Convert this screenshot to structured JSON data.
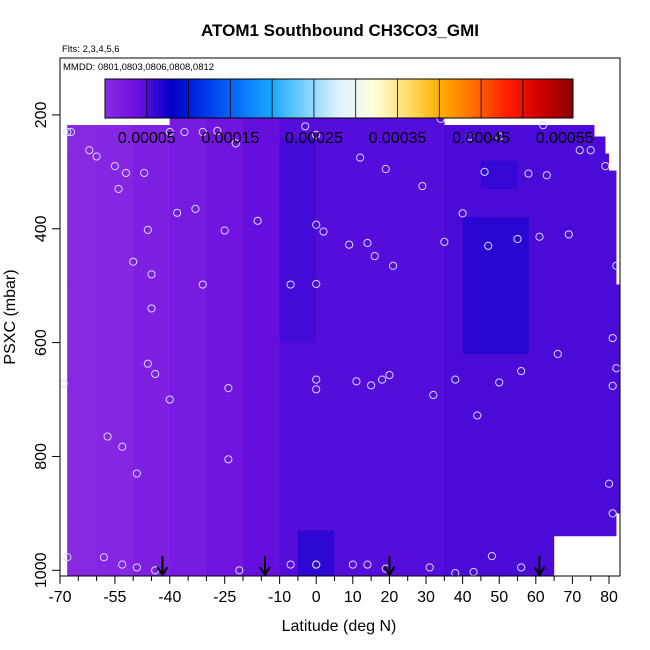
{
  "chart_data": {
    "type": "heatmap",
    "title": "ATOM1 Southbound CH3CO3_GMI",
    "subtitle_flights": "Flts: 2,3,4,5,6",
    "subtitle_dates": "MMDD: 0801,0803,0806,0808,0812",
    "xlabel": "Latitude (deg N)",
    "ylabel": "PSXC (mbar)",
    "xlim": [
      -70,
      83
    ],
    "ylim": [
      1010,
      100
    ],
    "x_ticks": [
      {
        "value": -70,
        "label": "-70"
      },
      {
        "value": -55,
        "label": "-55"
      },
      {
        "value": -40,
        "label": "-40"
      },
      {
        "value": -25,
        "label": "-25"
      },
      {
        "value": -10,
        "label": "-10"
      },
      {
        "value": 0,
        "label": "0"
      },
      {
        "value": 10,
        "label": "10"
      },
      {
        "value": 20,
        "label": "20"
      },
      {
        "value": 30,
        "label": "30"
      },
      {
        "value": 40,
        "label": "40"
      },
      {
        "value": 50,
        "label": "50"
      },
      {
        "value": 60,
        "label": "60"
      },
      {
        "value": 70,
        "label": "70"
      },
      {
        "value": 80,
        "label": "80"
      }
    ],
    "x_minor_ticks": [
      -65,
      -60,
      -50,
      -45,
      -35,
      -30,
      -20,
      -15,
      -5,
      5,
      15,
      25,
      35,
      45,
      55,
      65,
      75
    ],
    "y_ticks": [
      {
        "value": 200,
        "label": "200"
      },
      {
        "value": 400,
        "label": "400"
      },
      {
        "value": 600,
        "label": "600"
      },
      {
        "value": 800,
        "label": "800"
      },
      {
        "value": 1000,
        "label": "1000"
      }
    ],
    "colorbar": {
      "range": [
        0.0,
        0.00056
      ],
      "colors": [
        "#8a2be2",
        "#6a10e0",
        "#0000c8",
        "#0038e8",
        "#0a70ff",
        "#1aa8ff",
        "#7cd2ff",
        "#e0f2ff",
        "#ffffe0",
        "#ffe070",
        "#ffb000",
        "#ff7000",
        "#ff2000",
        "#d00000",
        "#8b0000"
      ],
      "tick_labels": [
        {
          "value": 5e-05,
          "label": "0.00005"
        },
        {
          "value": 0.00015,
          "label": "0.00015"
        },
        {
          "value": 0.00025,
          "label": "0.00025"
        },
        {
          "value": 0.00035,
          "label": "0.00035"
        },
        {
          "value": 0.00045,
          "label": "0.00045"
        },
        {
          "value": 0.00055,
          "label": "0.00055"
        }
      ]
    },
    "coverage": [
      {
        "lat_min": -40,
        "lat_max": 35,
        "p_min": 170,
        "p_max": 220
      },
      {
        "lat_min": -68,
        "lat_max": 76,
        "p_min": 218,
        "p_max": 240
      },
      {
        "lat_min": -68,
        "lat_max": 79,
        "p_min": 238,
        "p_max": 270
      },
      {
        "lat_min": -68,
        "lat_max": 80,
        "p_min": 268,
        "p_max": 300
      },
      {
        "lat_min": -68,
        "lat_max": 82,
        "p_min": 298,
        "p_max": 500
      },
      {
        "lat_min": -68,
        "lat_max": 83,
        "p_min": 498,
        "p_max": 900
      },
      {
        "lat_min": -68,
        "lat_max": 82,
        "p_min": 898,
        "p_max": 940
      },
      {
        "lat_min": -68,
        "lat_max": 65,
        "p_min": 938,
        "p_max": 1010
      }
    ],
    "field": [
      {
        "lat_min": -70,
        "lat_max": -60,
        "value": 3e-06
      },
      {
        "lat_min": -60,
        "lat_max": -50,
        "value": 8e-06
      },
      {
        "lat_min": -50,
        "lat_max": -40,
        "value": 1.6e-05
      },
      {
        "lat_min": -40,
        "lat_max": -30,
        "value": 2.4e-05
      },
      {
        "lat_min": -30,
        "lat_max": -20,
        "value": 3.2e-05
      },
      {
        "lat_min": -20,
        "lat_max": -10,
        "value": 4.2e-05
      },
      {
        "lat_min": -10,
        "lat_max": 35,
        "value": 4.8e-05
      },
      {
        "lat_min": 35,
        "lat_max": 85,
        "value": 5.2e-05
      }
    ],
    "field_highlights": [
      {
        "lat_min": 40,
        "lat_max": 58,
        "p_min": 380,
        "p_max": 620,
        "value": 6.8e-05
      },
      {
        "lat_min": 45,
        "lat_max": 55,
        "p_min": 280,
        "p_max": 330,
        "value": 6.2e-05
      },
      {
        "lat_min": -5,
        "lat_max": 5,
        "p_min": 930,
        "p_max": 1010,
        "value": 6.6e-05
      },
      {
        "lat_min": -10,
        "lat_max": 0,
        "p_min": 240,
        "p_max": 600,
        "value": 5.6e-05
      }
    ],
    "observations": [
      {
        "lat": -67,
        "p": 230
      },
      {
        "lat": -68,
        "p": 230
      },
      {
        "lat": -62,
        "p": 262
      },
      {
        "lat": -60,
        "p": 273
      },
      {
        "lat": -55,
        "p": 290
      },
      {
        "lat": -52,
        "p": 302
      },
      {
        "lat": -47,
        "p": 302
      },
      {
        "lat": -54,
        "p": 330
      },
      {
        "lat": -40,
        "p": 230
      },
      {
        "lat": -36,
        "p": 230
      },
      {
        "lat": -31,
        "p": 230
      },
      {
        "lat": -27,
        "p": 228
      },
      {
        "lat": -44,
        "p": 200
      },
      {
        "lat": -22,
        "p": 250
      },
      {
        "lat": -38,
        "p": 372
      },
      {
        "lat": -33,
        "p": 365
      },
      {
        "lat": -46,
        "p": 402
      },
      {
        "lat": -25,
        "p": 403
      },
      {
        "lat": -16,
        "p": 386
      },
      {
        "lat": -50,
        "p": 458
      },
      {
        "lat": -45,
        "p": 480
      },
      {
        "lat": -45,
        "p": 540
      },
      {
        "lat": -31,
        "p": 498
      },
      {
        "lat": -69,
        "p": 672
      },
      {
        "lat": -46,
        "p": 637
      },
      {
        "lat": -44,
        "p": 655
      },
      {
        "lat": -40,
        "p": 700
      },
      {
        "lat": -24,
        "p": 680
      },
      {
        "lat": -57,
        "p": 765
      },
      {
        "lat": -53,
        "p": 783
      },
      {
        "lat": -49,
        "p": 830
      },
      {
        "lat": -24,
        "p": 805
      },
      {
        "lat": -68,
        "p": 977
      },
      {
        "lat": -58,
        "p": 977
      },
      {
        "lat": -53,
        "p": 990
      },
      {
        "lat": -49,
        "p": 995
      },
      {
        "lat": -44,
        "p": 1000
      },
      {
        "lat": -21,
        "p": 1000
      },
      {
        "lat": -7,
        "p": 990
      },
      {
        "lat": 0,
        "p": 990
      },
      {
        "lat": 0,
        "p": 990
      },
      {
        "lat": 10,
        "p": 990
      },
      {
        "lat": 14,
        "p": 990
      },
      {
        "lat": 19,
        "p": 997
      },
      {
        "lat": 31,
        "p": 995
      },
      {
        "lat": 38,
        "p": 1005
      },
      {
        "lat": 43,
        "p": 1003
      },
      {
        "lat": 48,
        "p": 975
      },
      {
        "lat": 56,
        "p": 995
      },
      {
        "lat": -3,
        "p": 220
      },
      {
        "lat": 0,
        "p": 235
      },
      {
        "lat": 12,
        "p": 275
      },
      {
        "lat": 19,
        "p": 295
      },
      {
        "lat": 26,
        "p": 183
      },
      {
        "lat": 34,
        "p": 207
      },
      {
        "lat": 42,
        "p": 238
      },
      {
        "lat": 50,
        "p": 238
      },
      {
        "lat": 62,
        "p": 218
      },
      {
        "lat": 72,
        "p": 262
      },
      {
        "lat": 75,
        "p": 262
      },
      {
        "lat": 58,
        "p": 303
      },
      {
        "lat": 63,
        "p": 306
      },
      {
        "lat": 79,
        "p": 290
      },
      {
        "lat": 46,
        "p": 300
      },
      {
        "lat": 29,
        "p": 325
      },
      {
        "lat": 40,
        "p": 373
      },
      {
        "lat": 0,
        "p": 393
      },
      {
        "lat": 2,
        "p": 405
      },
      {
        "lat": 35,
        "p": 423
      },
      {
        "lat": 47,
        "p": 430
      },
      {
        "lat": 55,
        "p": 418
      },
      {
        "lat": 61,
        "p": 414
      },
      {
        "lat": 69,
        "p": 410
      },
      {
        "lat": 82,
        "p": 465
      },
      {
        "lat": 9,
        "p": 428
      },
      {
        "lat": 14,
        "p": 425
      },
      {
        "lat": 16,
        "p": 448
      },
      {
        "lat": 21,
        "p": 465
      },
      {
        "lat": -7,
        "p": 498
      },
      {
        "lat": 0,
        "p": 497
      },
      {
        "lat": 81,
        "p": 592
      },
      {
        "lat": 66,
        "p": 620
      },
      {
        "lat": 56,
        "p": 650
      },
      {
        "lat": 82,
        "p": 645
      },
      {
        "lat": 81,
        "p": 676
      },
      {
        "lat": 0,
        "p": 665
      },
      {
        "lat": 0,
        "p": 682
      },
      {
        "lat": 11,
        "p": 668
      },
      {
        "lat": 15,
        "p": 675
      },
      {
        "lat": 18,
        "p": 665
      },
      {
        "lat": 20,
        "p": 657
      },
      {
        "lat": 32,
        "p": 692
      },
      {
        "lat": 38,
        "p": 665
      },
      {
        "lat": 50,
        "p": 670
      },
      {
        "lat": 44,
        "p": 728
      },
      {
        "lat": 80,
        "p": 848
      },
      {
        "lat": 81,
        "p": 900
      }
    ],
    "arrows": [
      {
        "lat": -42,
        "p": 1010
      },
      {
        "lat": -14,
        "p": 1010
      },
      {
        "lat": 20,
        "p": 1010
      },
      {
        "lat": 61,
        "p": 1010
      }
    ]
  }
}
